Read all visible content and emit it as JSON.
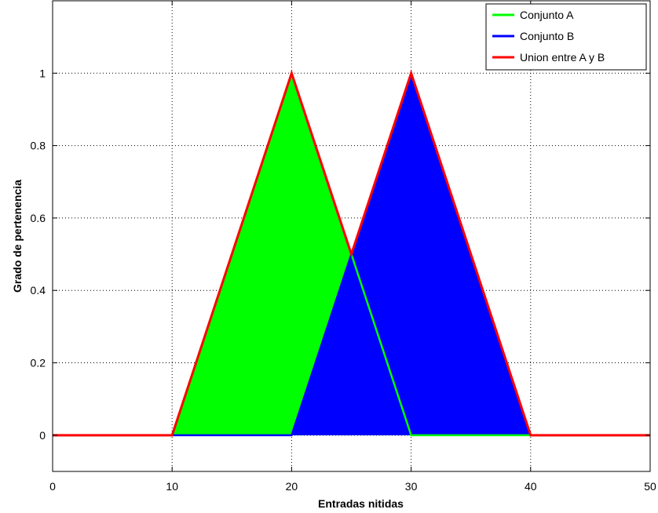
{
  "chart_data": {
    "type": "area",
    "xlabel": "Entradas nitidas",
    "ylabel": "Grado de pertenencia",
    "xlim": [
      0,
      50
    ],
    "ylim": [
      -0.1,
      1.2
    ],
    "xticks": [
      0,
      10,
      20,
      30,
      40,
      50
    ],
    "yticks": [
      0,
      0.2,
      0.4,
      0.6,
      0.8,
      1
    ],
    "ytick_labels": [
      "0",
      "0.2",
      "0.4",
      "0.6",
      "0.8",
      "1"
    ],
    "grid": true,
    "legend_position": "top-right",
    "series": [
      {
        "name": "Conjunto A",
        "color": "#00ff00",
        "fill": "#00ff00",
        "x": [
          0,
          10,
          20,
          30,
          50
        ],
        "y": [
          0,
          0,
          1,
          0,
          0
        ]
      },
      {
        "name": "Conjunto B",
        "color": "#0000ff",
        "fill": "#0000ff",
        "x": [
          0,
          20,
          30,
          40,
          50
        ],
        "y": [
          0,
          0,
          1,
          0,
          0
        ]
      },
      {
        "name": "Union entre A y B",
        "color": "#ff0000",
        "x": [
          0,
          10,
          20,
          25,
          30,
          40,
          50
        ],
        "y": [
          0,
          0,
          1,
          0.5,
          1,
          0,
          0
        ]
      }
    ]
  }
}
